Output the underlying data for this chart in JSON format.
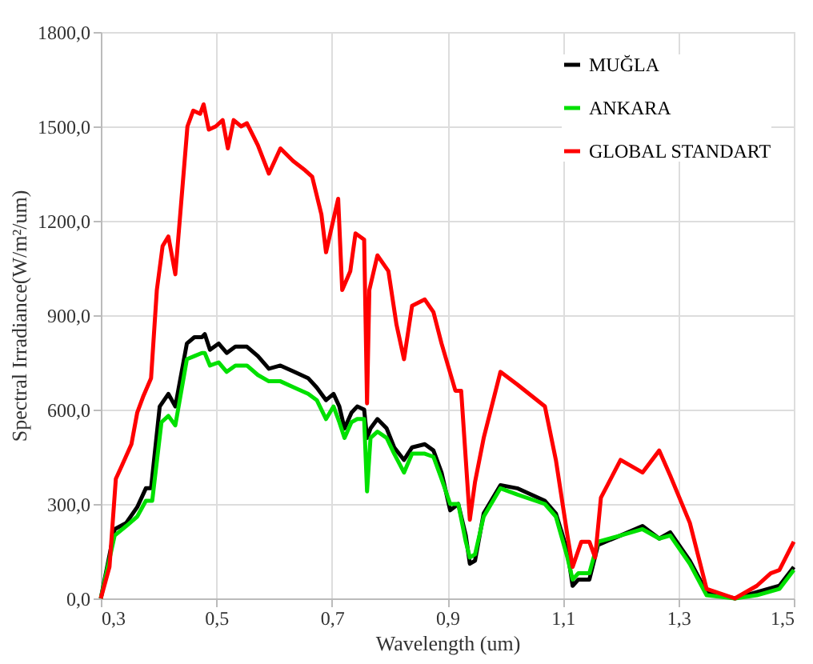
{
  "chart_data": {
    "type": "line",
    "xlabel": "Wavelength  (um)",
    "ylabel": "Spectral Irradiance(W/m²/um)",
    "xlim": [
      0.3,
      1.5
    ],
    "ylim": [
      0,
      1800
    ],
    "xticks": [
      {
        "value": 0.3,
        "label": "0,3"
      },
      {
        "value": 0.5,
        "label": "0,5"
      },
      {
        "value": 0.7,
        "label": "0,7"
      },
      {
        "value": 0.9,
        "label": "0,9"
      },
      {
        "value": 1.1,
        "label": "1,1"
      },
      {
        "value": 1.3,
        "label": "1,3"
      },
      {
        "value": 1.5,
        "label": "1,5"
      }
    ],
    "yticks": [
      {
        "value": 0,
        "label": "0,0"
      },
      {
        "value": 300,
        "label": "300,0"
      },
      {
        "value": 600,
        "label": "600,0"
      },
      {
        "value": 900,
        "label": "900,0"
      },
      {
        "value": 1200,
        "label": "1200,0"
      },
      {
        "value": 1500,
        "label": "1500,0"
      },
      {
        "value": 1800,
        "label": "1800,0"
      }
    ],
    "grid": true,
    "legend": "top right",
    "marker": "none",
    "line_style": "solid",
    "series": [
      {
        "name": "MUĞLA",
        "color": "#000000",
        "x": [
          0.3,
          0.324,
          0.344,
          0.363,
          0.378,
          0.387,
          0.402,
          0.417,
          0.429,
          0.449,
          0.462,
          0.475,
          0.48,
          0.489,
          0.504,
          0.518,
          0.533,
          0.553,
          0.572,
          0.591,
          0.611,
          0.635,
          0.659,
          0.674,
          0.69,
          0.703,
          0.713,
          0.722,
          0.734,
          0.744,
          0.756,
          0.761,
          0.767,
          0.779,
          0.795,
          0.808,
          0.825,
          0.839,
          0.861,
          0.876,
          0.89,
          0.905,
          0.919,
          0.932,
          0.939,
          0.948,
          0.963,
          0.992,
          1.021,
          1.069,
          1.088,
          1.108,
          1.117,
          1.127,
          1.146,
          1.161,
          1.2,
          1.238,
          1.267,
          1.286,
          1.32,
          1.349,
          1.398,
          1.436,
          1.475,
          1.5
        ],
        "values": [
          0,
          220,
          240,
          290,
          350,
          350,
          610,
          650,
          610,
          810,
          830,
          830,
          840,
          790,
          810,
          780,
          800,
          800,
          770,
          730,
          740,
          720,
          700,
          670,
          630,
          650,
          610,
          540,
          590,
          610,
          600,
          510,
          540,
          570,
          540,
          480,
          440,
          480,
          490,
          470,
          400,
          280,
          300,
          200,
          110,
          120,
          270,
          360,
          350,
          310,
          270,
          150,
          40,
          60,
          60,
          170,
          200,
          230,
          190,
          210,
          120,
          20,
          0,
          20,
          40,
          100
        ]
      },
      {
        "name": "ANKARA",
        "color": "#00e000",
        "x": [
          0.3,
          0.324,
          0.344,
          0.363,
          0.378,
          0.389,
          0.405,
          0.417,
          0.429,
          0.449,
          0.462,
          0.475,
          0.48,
          0.489,
          0.504,
          0.518,
          0.533,
          0.553,
          0.572,
          0.591,
          0.611,
          0.635,
          0.659,
          0.674,
          0.69,
          0.703,
          0.713,
          0.722,
          0.734,
          0.744,
          0.756,
          0.761,
          0.767,
          0.779,
          0.795,
          0.808,
          0.825,
          0.839,
          0.861,
          0.876,
          0.89,
          0.905,
          0.919,
          0.932,
          0.939,
          0.948,
          0.963,
          0.992,
          1.021,
          1.069,
          1.088,
          1.108,
          1.117,
          1.127,
          1.146,
          1.161,
          1.2,
          1.238,
          1.267,
          1.286,
          1.32,
          1.349,
          1.398,
          1.436,
          1.475,
          1.5
        ],
        "values": [
          0,
          200,
          230,
          260,
          310,
          310,
          560,
          580,
          550,
          760,
          770,
          780,
          780,
          740,
          750,
          720,
          740,
          740,
          710,
          690,
          690,
          670,
          650,
          630,
          570,
          610,
          560,
          510,
          560,
          570,
          570,
          340,
          510,
          530,
          510,
          460,
          400,
          460,
          460,
          450,
          380,
          300,
          300,
          180,
          130,
          140,
          260,
          350,
          330,
          300,
          260,
          130,
          60,
          80,
          80,
          180,
          200,
          220,
          190,
          200,
          110,
          10,
          0,
          10,
          30,
          90
        ]
      },
      {
        "name": "GLOBAL STANDART",
        "color": "#ff0000",
        "x": [
          0.3,
          0.315,
          0.326,
          0.336,
          0.353,
          0.363,
          0.373,
          0.387,
          0.397,
          0.407,
          0.417,
          0.429,
          0.45,
          0.46,
          0.472,
          0.478,
          0.487,
          0.499,
          0.511,
          0.52,
          0.53,
          0.543,
          0.553,
          0.572,
          0.591,
          0.611,
          0.633,
          0.654,
          0.666,
          0.682,
          0.69,
          0.701,
          0.711,
          0.718,
          0.732,
          0.741,
          0.756,
          0.761,
          0.765,
          0.779,
          0.798,
          0.812,
          0.825,
          0.839,
          0.861,
          0.876,
          0.89,
          0.914,
          0.924,
          0.939,
          0.948,
          0.963,
          0.992,
          1.021,
          1.069,
          1.088,
          1.108,
          1.117,
          1.132,
          1.146,
          1.156,
          1.166,
          1.2,
          1.238,
          1.267,
          1.286,
          1.32,
          1.349,
          1.398,
          1.436,
          1.46,
          1.475,
          1.5
        ],
        "values": [
          0,
          100,
          380,
          420,
          490,
          590,
          640,
          700,
          980,
          1120,
          1150,
          1030,
          1500,
          1550,
          1540,
          1570,
          1490,
          1500,
          1520,
          1430,
          1520,
          1500,
          1510,
          1440,
          1350,
          1430,
          1390,
          1360,
          1340,
          1220,
          1100,
          1190,
          1270,
          980,
          1040,
          1160,
          1140,
          620,
          980,
          1090,
          1040,
          870,
          760,
          930,
          950,
          910,
          810,
          660,
          660,
          250,
          370,
          510,
          720,
          680,
          610,
          440,
          200,
          100,
          180,
          180,
          130,
          320,
          440,
          400,
          470,
          390,
          240,
          30,
          0,
          40,
          80,
          90,
          180
        ]
      }
    ]
  }
}
